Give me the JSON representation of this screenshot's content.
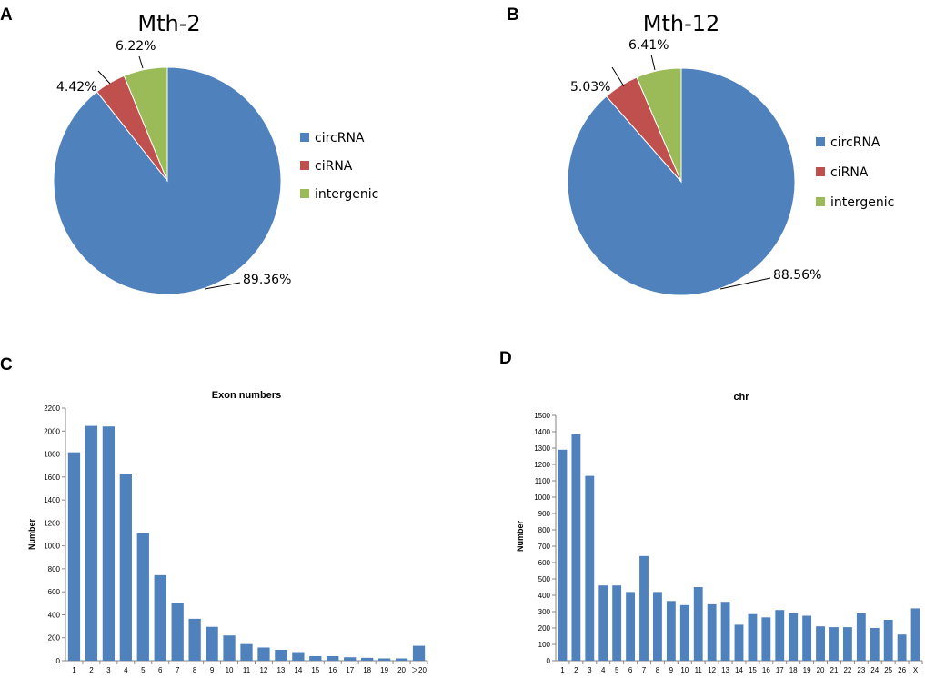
{
  "panels": [
    {
      "letter": "A"
    },
    {
      "letter": "B"
    },
    {
      "letter": "C"
    },
    {
      "letter": "D"
    }
  ],
  "colors": {
    "circRNA": "#4f81bd",
    "ciRNA": "#c0504d",
    "intergenic": "#9bbb59",
    "bar": "#4f81bd"
  },
  "chart_data": [
    {
      "type": "pie",
      "title": "Mth-2",
      "legend_position": "right",
      "slices": [
        {
          "label": "circRNA",
          "value": 89.36,
          "text": "89.36%"
        },
        {
          "label": "ciRNA",
          "value": 4.42,
          "text": "4.42%"
        },
        {
          "label": "intergenic",
          "value": 6.22,
          "text": "6.22%"
        }
      ]
    },
    {
      "type": "pie",
      "title": "Mth-12",
      "legend_position": "right",
      "slices": [
        {
          "label": "circRNA",
          "value": 88.56,
          "text": "88.56%"
        },
        {
          "label": "ciRNA",
          "value": 5.03,
          "text": "5.03%"
        },
        {
          "label": "intergenic",
          "value": 6.41,
          "text": "6.41%"
        }
      ]
    },
    {
      "type": "bar",
      "title": "Exon numbers",
      "xlabel": "",
      "ylabel": "Number",
      "ylim": [
        0,
        2200
      ],
      "yticks": [
        0,
        200,
        400,
        600,
        800,
        1000,
        1200,
        1400,
        1600,
        1800,
        2000,
        2200
      ],
      "categories": [
        "1",
        "2",
        "3",
        "4",
        "5",
        "6",
        "7",
        "8",
        "9",
        "10",
        "11",
        "12",
        "13",
        "14",
        "15",
        "16",
        "17",
        "18",
        "19",
        "20",
        "＞20"
      ],
      "values": [
        1815,
        2045,
        2040,
        1630,
        1110,
        745,
        500,
        365,
        295,
        220,
        145,
        115,
        95,
        75,
        40,
        40,
        30,
        25,
        20,
        20,
        130
      ]
    },
    {
      "type": "bar",
      "title": "chr",
      "xlabel": "",
      "ylabel": "Number",
      "ylim": [
        0,
        1500
      ],
      "yticks": [
        0,
        100,
        200,
        300,
        400,
        500,
        600,
        700,
        800,
        900,
        1000,
        1100,
        1200,
        1300,
        1400,
        1500
      ],
      "categories": [
        "1",
        "2",
        "3",
        "4",
        "5",
        "6",
        "7",
        "8",
        "9",
        "10",
        "11",
        "12",
        "13",
        "14",
        "15",
        "16",
        "17",
        "18",
        "19",
        "20",
        "21",
        "22",
        "23",
        "24",
        "25",
        "26",
        "X"
      ],
      "values": [
        1290,
        1385,
        1130,
        460,
        460,
        420,
        640,
        420,
        365,
        340,
        450,
        345,
        360,
        220,
        285,
        265,
        310,
        290,
        275,
        210,
        205,
        205,
        290,
        200,
        250,
        160,
        320
      ]
    }
  ]
}
